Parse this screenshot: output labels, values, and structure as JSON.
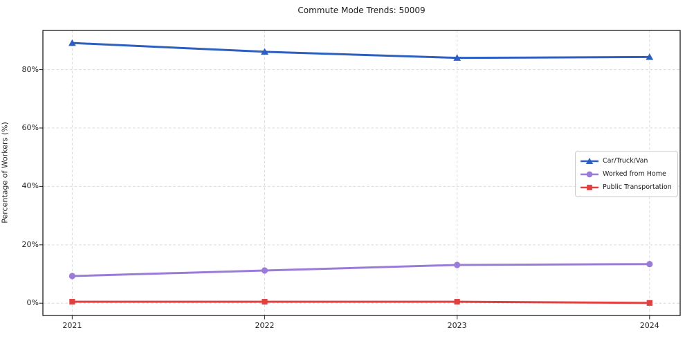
{
  "chart_data": {
    "type": "line",
    "title": "Commute Mode Trends: 50009",
    "xlabel": "",
    "ylabel": "Percentage of Workers (%)",
    "categories": [
      "2021",
      "2022",
      "2023",
      "2024"
    ],
    "series": [
      {
        "name": "Car/Truck/Van",
        "marker": "triangle",
        "color": "#2d5fc0",
        "values": [
          89.1,
          86.1,
          84.0,
          84.3
        ]
      },
      {
        "name": "Worked from Home",
        "marker": "circle",
        "color": "#9b7bd8",
        "values": [
          9.3,
          11.2,
          13.1,
          13.4
        ]
      },
      {
        "name": "Public Transportation",
        "marker": "square",
        "color": "#e04040",
        "values": [
          0.5,
          0.5,
          0.5,
          0.1
        ]
      }
    ],
    "yticks": [
      0,
      20,
      40,
      60,
      80
    ],
    "ytick_suffix": "%",
    "ylim": [
      -4.2,
      93.4
    ],
    "grid": "dashed",
    "grid_color": "#d9d9d9",
    "frame_color": "#1a1a1a",
    "legend_position": "center-right"
  }
}
